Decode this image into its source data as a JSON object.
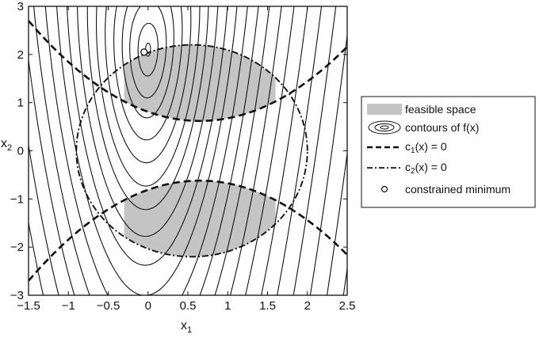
{
  "chart_data": {
    "type": "contour",
    "title": "",
    "xlabel": "x",
    "xlabel_sub": "1",
    "ylabel": "x",
    "ylabel_sub": "2",
    "xlim": [
      -1.5,
      2.5
    ],
    "ylim": [
      -3,
      3
    ],
    "x_ticks": [
      -1.5,
      -1,
      -0.5,
      0,
      0.5,
      1,
      1.5,
      2,
      2.5
    ],
    "x_tick_labels": [
      "−1.5",
      "−1",
      "−0.5",
      "0",
      "0.5",
      "1",
      "1.5",
      "2",
      "2.5"
    ],
    "y_ticks": [
      -3,
      -2,
      -1,
      0,
      1,
      2,
      3
    ],
    "y_tick_labels": [
      "−3",
      "−2",
      "−1",
      "0",
      "1",
      "2",
      "3"
    ],
    "grid": false,
    "legend_position": "right-outside",
    "objective": {
      "form": "(x2 - a*x1^2 - b*x1 - c)^2 + d*x1^2",
      "a": 1.7,
      "b": 0.27,
      "c": 2.1,
      "d": 19,
      "levels": [
        0.02,
        0.3,
        1,
        2,
        3.5,
        5.5,
        8,
        11,
        15,
        20,
        26,
        34,
        44,
        56,
        72,
        92,
        118,
        150,
        190,
        240,
        300,
        370
      ],
      "line_color": "#111111"
    },
    "constraint_1": {
      "description": "c1(x) = 0",
      "form": "x2 = a*(x1 - h)^2 + k",
      "branches": [
        {
          "a": 0.45,
          "h": 0.65,
          "k": 0.62
        },
        {
          "a": -0.45,
          "h": 0.65,
          "k": -0.62
        }
      ],
      "style": "dashed"
    },
    "constraint_2": {
      "description": "c2(x) = 0",
      "form": "circle",
      "center": [
        0.55,
        0
      ],
      "radius_x": 1.45,
      "radius_y": 2.2,
      "style": "dash-dot"
    },
    "feasible_regions": [
      {
        "x_from": -0.3,
        "x_to": 1.6
      },
      {
        "x_from": -0.3,
        "x_to": 1.6
      }
    ],
    "feasible_color": "#c4c4c4",
    "constrained_minimum": {
      "x": -0.05,
      "y": 2.05
    }
  },
  "legend": {
    "items": [
      {
        "key": "feasible",
        "label": "feasible space"
      },
      {
        "key": "contours",
        "label": "contours of f(x)"
      },
      {
        "key": "c1",
        "label_pre": "c",
        "label_sub": "1",
        "label_post": "(x) = 0"
      },
      {
        "key": "c2",
        "label_pre": "c",
        "label_sub": "2",
        "label_post": "(x) = 0"
      },
      {
        "key": "minimum",
        "label": "constrained minimum"
      }
    ]
  }
}
